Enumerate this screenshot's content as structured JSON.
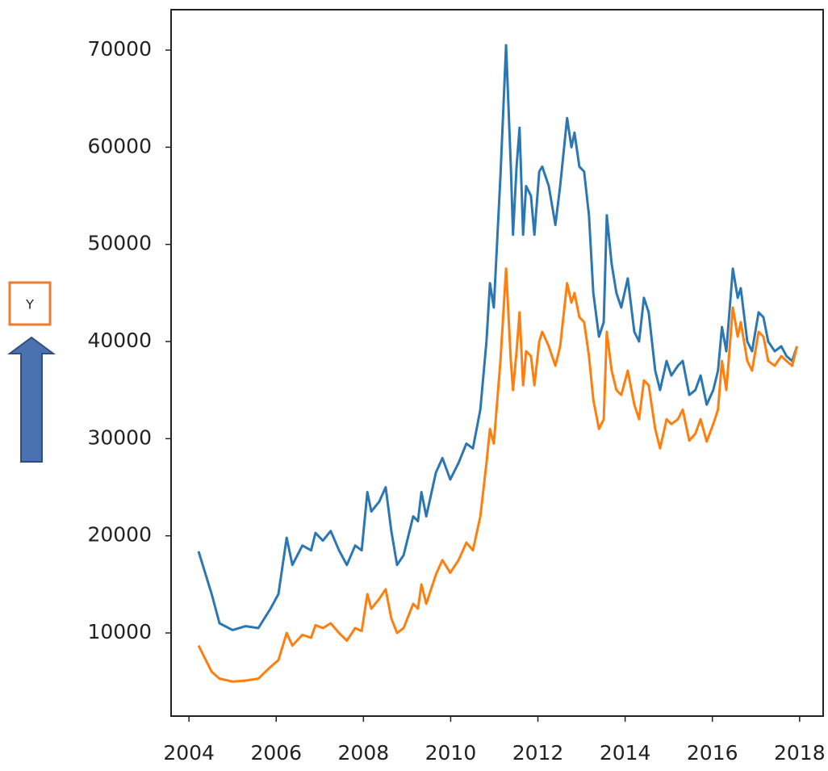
{
  "chart_data": {
    "type": "line",
    "ylabel": "Y",
    "x": [
      2004.22,
      2004.52,
      2004.7,
      2005.0,
      2005.3,
      2005.59,
      2005.87,
      2006.05,
      2006.24,
      2006.37,
      2006.6,
      2006.8,
      2006.9,
      2007.07,
      2007.25,
      2007.44,
      2007.62,
      2007.81,
      2007.96,
      2008.09,
      2008.18,
      2008.36,
      2008.51,
      2008.64,
      2008.77,
      2008.92,
      2009.14,
      2009.25,
      2009.33,
      2009.44,
      2009.66,
      2009.81,
      2009.99,
      2010.18,
      2010.36,
      2010.51,
      2010.68,
      2010.82,
      2010.9,
      2010.99,
      2011.14,
      2011.27,
      2011.38,
      2011.43,
      2011.51,
      2011.58,
      2011.66,
      2011.73,
      2011.84,
      2011.92,
      2012.03,
      2012.1,
      2012.25,
      2012.4,
      2012.51,
      2012.67,
      2012.77,
      2012.84,
      2012.95,
      2013.06,
      2013.17,
      2013.27,
      2013.4,
      2013.51,
      2013.58,
      2013.69,
      2013.8,
      2013.91,
      2014.06,
      2014.21,
      2014.32,
      2014.43,
      2014.54,
      2014.69,
      2014.8,
      2014.95,
      2015.06,
      2015.21,
      2015.32,
      2015.47,
      2015.61,
      2015.73,
      2015.87,
      2016.02,
      2016.13,
      2016.22,
      2016.32,
      2016.47,
      2016.58,
      2016.65,
      2016.8,
      2016.91,
      2017.06,
      2017.17,
      2017.28,
      2017.43,
      2017.58,
      2017.7,
      2017.83,
      2017.94
    ],
    "series": [
      {
        "color": "#2a77b4",
        "values": [
          18400,
          14000,
          11000,
          10300,
          10700,
          10500,
          12500,
          14000,
          19800,
          17000,
          19000,
          18500,
          20300,
          19500,
          20500,
          18500,
          17000,
          19000,
          18500,
          24500,
          22500,
          23500,
          25000,
          20500,
          17000,
          18000,
          22000,
          21500,
          24500,
          22000,
          26500,
          28000,
          25800,
          27500,
          29500,
          29000,
          33000,
          40000,
          46000,
          43500,
          57000,
          70500,
          58000,
          51000,
          58000,
          62000,
          51000,
          56000,
          55000,
          51000,
          57500,
          58000,
          56000,
          52000,
          56000,
          63000,
          60000,
          61500,
          58000,
          57500,
          53000,
          45000,
          40500,
          42000,
          53000,
          48000,
          45000,
          43500,
          46500,
          41000,
          40000,
          44500,
          43000,
          37000,
          35000,
          38000,
          36500,
          37500,
          38000,
          34500,
          35000,
          36500,
          33500,
          35000,
          37000,
          41500,
          39000,
          47500,
          44500,
          45500,
          40000,
          39000,
          43000,
          42500,
          40000,
          39000,
          39500,
          38500,
          38000,
          39500
        ]
      },
      {
        "color": "#ff7f0e",
        "values": [
          8700,
          6000,
          5300,
          5000,
          5100,
          5300,
          6500,
          7200,
          10000,
          8700,
          9800,
          9500,
          10800,
          10500,
          11000,
          10000,
          9200,
          10500,
          10200,
          14000,
          12500,
          13500,
          14500,
          11500,
          10000,
          10500,
          13000,
          12500,
          15000,
          13000,
          16000,
          17500,
          16200,
          17500,
          19300,
          18500,
          22000,
          27500,
          31000,
          29500,
          38000,
          47500,
          38000,
          35000,
          39000,
          43000,
          35500,
          39000,
          38500,
          35500,
          40000,
          41000,
          39500,
          37500,
          39500,
          46000,
          44000,
          45000,
          42500,
          42000,
          38500,
          34000,
          31000,
          32000,
          41000,
          37000,
          35000,
          34500,
          37000,
          33500,
          32000,
          36000,
          35500,
          31000,
          29000,
          32000,
          31500,
          32000,
          33000,
          29800,
          30500,
          32000,
          29700,
          31500,
          33000,
          38000,
          35000,
          43500,
          40500,
          42000,
          38000,
          37000,
          41000,
          40500,
          38000,
          37500,
          38500,
          38000,
          37500,
          39500
        ]
      }
    ],
    "xlim": [
      2003.59,
      2018.54
    ],
    "xticks": [
      2004,
      2006,
      2008,
      2010,
      2012,
      2014,
      2016,
      2018
    ],
    "ylim": [
      1440,
      74160
    ],
    "yticks": [
      10000,
      20000,
      30000,
      40000,
      50000,
      60000,
      70000
    ]
  }
}
